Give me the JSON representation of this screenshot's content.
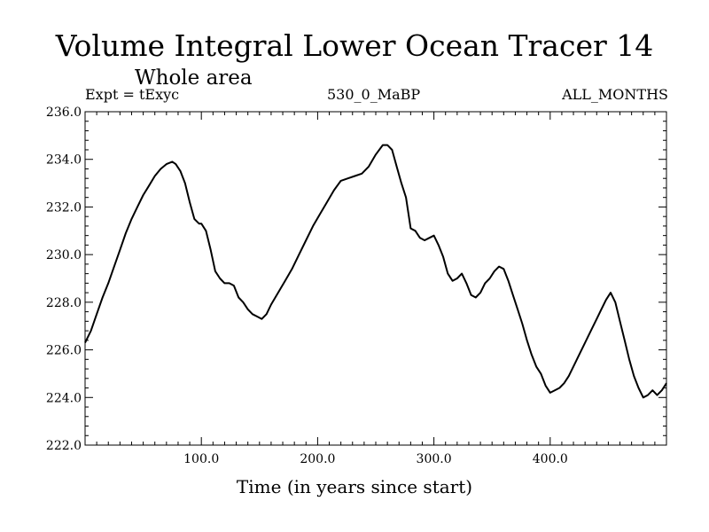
{
  "chart_data": {
    "type": "line",
    "title": "Volume Integral Lower Ocean Tracer 14",
    "subtitle": "Whole area",
    "header_left": "Expt = tExyc",
    "header_center": "530_0_MaBP",
    "header_right": "ALL_MONTHS",
    "xlabel": "Time (in years since start)",
    "ylabel": "",
    "xlim": [
      0,
      500
    ],
    "ylim": [
      222.0,
      236.0
    ],
    "xticks": [
      100,
      200,
      300,
      400
    ],
    "xtick_labels": [
      "100.0",
      "200.0",
      "300.0",
      "400.0"
    ],
    "yticks": [
      222,
      224,
      226,
      228,
      230,
      232,
      234,
      236
    ],
    "ytick_labels": [
      "222.0",
      "224.0",
      "226.0",
      "228.0",
      "230.0",
      "232.0",
      "234.0",
      "236.0"
    ],
    "grid": false,
    "series": [
      {
        "color": "#000000",
        "x": [
          0,
          5,
          10,
          15,
          20,
          25,
          30,
          35,
          40,
          45,
          50,
          55,
          60,
          65,
          70,
          75,
          78,
          82,
          86,
          90,
          94,
          98,
          100,
          104,
          108,
          112,
          116,
          120,
          124,
          128,
          132,
          136,
          140,
          144,
          148,
          152,
          156,
          160,
          166,
          172,
          178,
          184,
          190,
          196,
          202,
          208,
          214,
          220,
          226,
          232,
          238,
          244,
          250,
          256,
          260,
          264,
          268,
          272,
          276,
          280,
          284,
          288,
          292,
          296,
          300,
          304,
          308,
          312,
          316,
          320,
          324,
          328,
          332,
          336,
          340,
          344,
          348,
          352,
          356,
          360,
          364,
          368,
          372,
          376,
          380,
          384,
          388,
          392,
          396,
          400,
          404,
          408,
          412,
          416,
          420,
          424,
          428,
          432,
          436,
          440,
          444,
          448,
          452,
          456,
          460,
          464,
          468,
          472,
          476,
          480,
          484,
          488,
          492,
          496,
          500
        ],
        "y": [
          226.3,
          226.8,
          227.5,
          228.2,
          228.8,
          229.5,
          230.2,
          230.9,
          231.5,
          232.0,
          232.5,
          232.9,
          233.3,
          233.6,
          233.8,
          233.9,
          233.8,
          233.5,
          233.0,
          232.2,
          231.5,
          231.3,
          231.3,
          231.0,
          230.2,
          229.3,
          229.0,
          228.8,
          228.8,
          228.7,
          228.2,
          228.0,
          227.7,
          227.5,
          227.4,
          227.3,
          227.5,
          227.9,
          228.4,
          228.9,
          229.4,
          230.0,
          230.6,
          231.2,
          231.7,
          232.2,
          232.7,
          233.1,
          233.2,
          233.3,
          233.4,
          233.7,
          234.2,
          234.6,
          234.6,
          234.4,
          233.7,
          233.0,
          232.4,
          231.1,
          231.0,
          230.7,
          230.6,
          230.7,
          230.8,
          230.4,
          229.9,
          229.2,
          228.9,
          229.0,
          229.2,
          228.8,
          228.3,
          228.2,
          228.4,
          228.8,
          229.0,
          229.3,
          229.5,
          229.4,
          228.9,
          228.3,
          227.7,
          227.1,
          226.4,
          225.8,
          225.3,
          225.0,
          224.5,
          224.2,
          224.3,
          224.4,
          224.6,
          224.9,
          225.3,
          225.7,
          226.1,
          226.5,
          226.9,
          227.3,
          227.7,
          228.1,
          228.4,
          228.0,
          227.2,
          226.4,
          225.6,
          224.9,
          224.4,
          224.0,
          224.1,
          224.3,
          224.1,
          224.3,
          224.6
        ]
      }
    ]
  }
}
